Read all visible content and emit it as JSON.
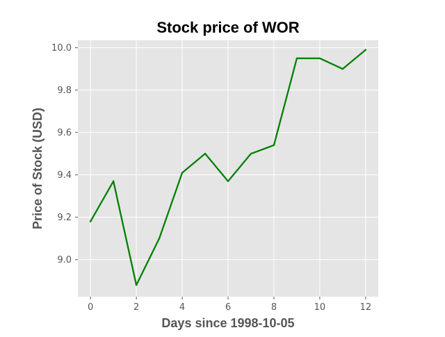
{
  "chart_data": {
    "type": "line",
    "title": "Stock price of WOR",
    "xlabel": "Days since 1998-10-05",
    "ylabel": "Price of Stock (USD)",
    "x": [
      0,
      1,
      2,
      3,
      4,
      5,
      6,
      7,
      8,
      9,
      10,
      11,
      12
    ],
    "series": [
      {
        "values": [
          9.18,
          9.37,
          8.88,
          9.1,
          9.41,
          9.5,
          9.37,
          9.5,
          9.54,
          9.95,
          9.95,
          9.9,
          9.99
        ],
        "color": "#008000"
      }
    ],
    "xlim": [
      -0.55,
      12.55
    ],
    "ylim": [
      8.825,
      10.035
    ],
    "xticks": [
      0,
      2,
      4,
      6,
      8,
      10,
      12
    ],
    "xtick_labels": [
      "0",
      "2",
      "4",
      "6",
      "8",
      "10",
      "12"
    ],
    "yticks": [
      9.0,
      9.2,
      9.4,
      9.6,
      9.8,
      10.0
    ],
    "ytick_labels": [
      "9.0",
      "9.2",
      "9.4",
      "9.6",
      "9.8",
      "10.0"
    ],
    "grid": true,
    "background": "#e5e5e5",
    "grid_color": "#ffffff"
  }
}
